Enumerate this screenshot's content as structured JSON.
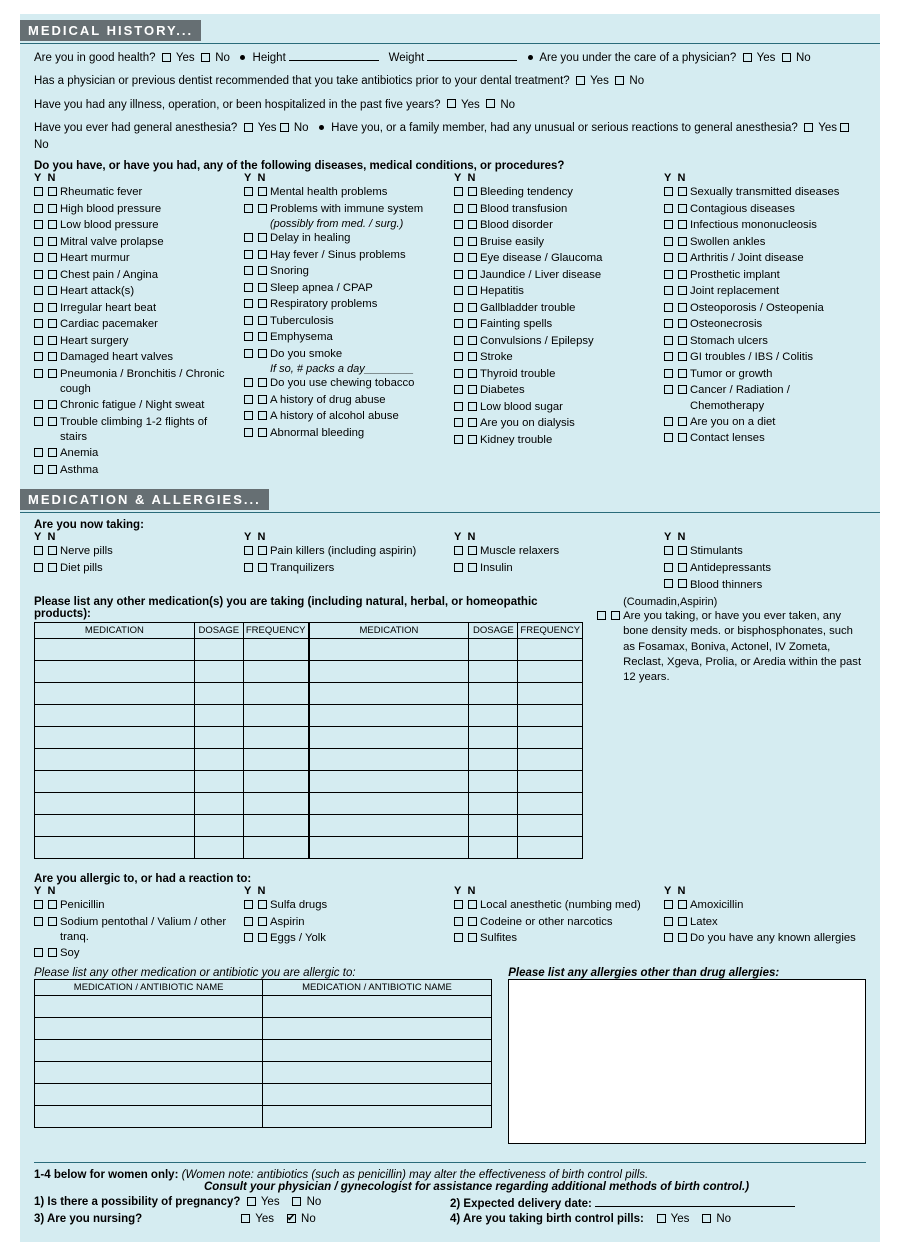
{
  "sections": {
    "medHist": "MEDICAL HISTORY...",
    "medAll": "MEDICATION & ALLERGIES..."
  },
  "labels": {
    "yes": "Yes",
    "no": "No",
    "y": "Y",
    "n": "N",
    "height": "Height",
    "weight": "Weight"
  },
  "q": {
    "good_health": "Are you in good health?",
    "under_care": "Are you under the care of a physician?",
    "antibiotics": "Has a physician or previous dentist recommended that you take antibiotics prior to your dental treatment?",
    "illness5yr": "Have you had any illness, operation, or been hospitalized in the past five years?",
    "anesthesia": "Have you ever had general anesthesia?",
    "anesthesia_react": "Have you, or a family member, had any unusual or serious reactions to general anesthesia?",
    "diseases_hdr": "Do you have, or have you had, any of the following diseases, medical conditions, or procedures?",
    "now_taking": "Are you now taking:",
    "list_meds": "Please list any other medication(s) you are taking (including natural, herbal, or homeopathic products):",
    "allergic_hdr": "Are you allergic to, or had a reaction to:",
    "list_ab": "Please list any other medication or antibiotic you are allergic to:",
    "list_other_allergy": "Please list any allergies other than drug allergies:",
    "women_hdr": "1-4 below for women only:",
    "women_note1": "(Women note: antibiotics (such as penicillin) may alter the effectiveness of birth control pills.",
    "women_note2": "Consult your physician / gynecologist for assistance regarding additional methods of birth control.)",
    "w1": "1) Is there a possibility of pregnancy?",
    "w2": "2) Expected delivery date:",
    "w3": "3) Are you nursing?",
    "w4": "4) Are you taking birth control pills:"
  },
  "tbl": {
    "medication": "MEDICATION",
    "dosage": "DOSAGE",
    "frequency": "FREQUENCY",
    "ab_name": "MEDICATION / ANTIBIOTIC NAME"
  },
  "diseases": {
    "c1": [
      "Rheumatic fever",
      "High blood pressure",
      "Low blood pressure",
      "Mitral valve prolapse",
      "Heart murmur",
      "Chest pain / Angina",
      "Heart attack(s)",
      "Irregular heart beat",
      "Cardiac pacemaker",
      "Heart surgery",
      "Damaged heart valves",
      {
        "t": "Pneumonia / Bronchitis / Chronic cough",
        "s": 1
      },
      "Chronic fatigue / Night sweat",
      {
        "t": "Trouble climbing 1-2 flights of stairs",
        "s": 1
      },
      "Anemia",
      "Asthma"
    ],
    "c2": [
      "Mental health problems",
      "Problems with immune system",
      {
        "sub": "(possibly from med. / surg.)"
      },
      "Delay in healing",
      "Hay fever / Sinus problems",
      "Snoring",
      "Sleep apnea / CPAP",
      "Respiratory problems",
      "Tuberculosis",
      "Emphysema",
      "Do you smoke",
      {
        "sub": "If so, # packs a day________"
      },
      "Do you use chewing tobacco",
      "A history of drug abuse",
      "A history of alcohol abuse",
      "Abnormal bleeding"
    ],
    "c3": [
      "Bleeding tendency",
      "Blood transfusion",
      "Blood disorder",
      "Bruise easily",
      "Eye disease / Glaucoma",
      "Jaundice / Liver disease",
      "Hepatitis",
      "Gallbladder trouble",
      "Fainting spells",
      "Convulsions / Epilepsy",
      "Stroke",
      "Thyroid trouble",
      "Diabetes",
      "Low blood sugar",
      "Are you on dialysis",
      "Kidney trouble"
    ],
    "c4": [
      "Sexually transmitted diseases",
      "Contagious diseases",
      "Infectious mononucleosis",
      "Swollen ankles",
      "Arthritis / Joint disease",
      "Prosthetic implant",
      "Joint replacement",
      "Osteoporosis / Osteopenia",
      "Osteonecrosis",
      "Stomach ulcers",
      "GI troubles / IBS / Colitis",
      "Tumor or growth",
      {
        "t": "Cancer / Radiation / Chemotherapy",
        "s": 1
      },
      "Are you on a diet",
      "Contact lenses"
    ]
  },
  "meds_taking": {
    "c1": [
      "Nerve pills",
      "Diet pills"
    ],
    "c2": [
      "Pain killers (including aspirin)",
      "Tranquilizers"
    ],
    "c3": [
      "Muscle relaxers",
      "Insulin"
    ],
    "c4": [
      "Stimulants",
      "Antidepressants",
      "Blood thinners"
    ],
    "c4_sub": "(Coumadin,Aspirin)",
    "bone": "Are you taking, or have you ever taken, any bone density meds. or bisphosphonates, such as Fosamax, Boniva, Actonel, IV Zometa, Reclast, Xgeva, Prolia, or Aredia within the past 12 years."
  },
  "allergies": {
    "c1": [
      "Penicillin",
      {
        "t": "Sodium pentothal / Valium / other tranq.",
        "s": 1
      },
      "Soy"
    ],
    "c2": [
      "Sulfa drugs",
      "Aspirin",
      "Eggs / Yolk"
    ],
    "c3": [
      "Local anesthetic (numbing med)",
      "Codeine or other narcotics",
      "Sulfites"
    ],
    "c4": [
      "Amoxicillin",
      "Latex",
      {
        "t": "Do you have any known allergies",
        "s": 1
      }
    ]
  },
  "rows": {
    "med": 10,
    "ab": 6
  }
}
